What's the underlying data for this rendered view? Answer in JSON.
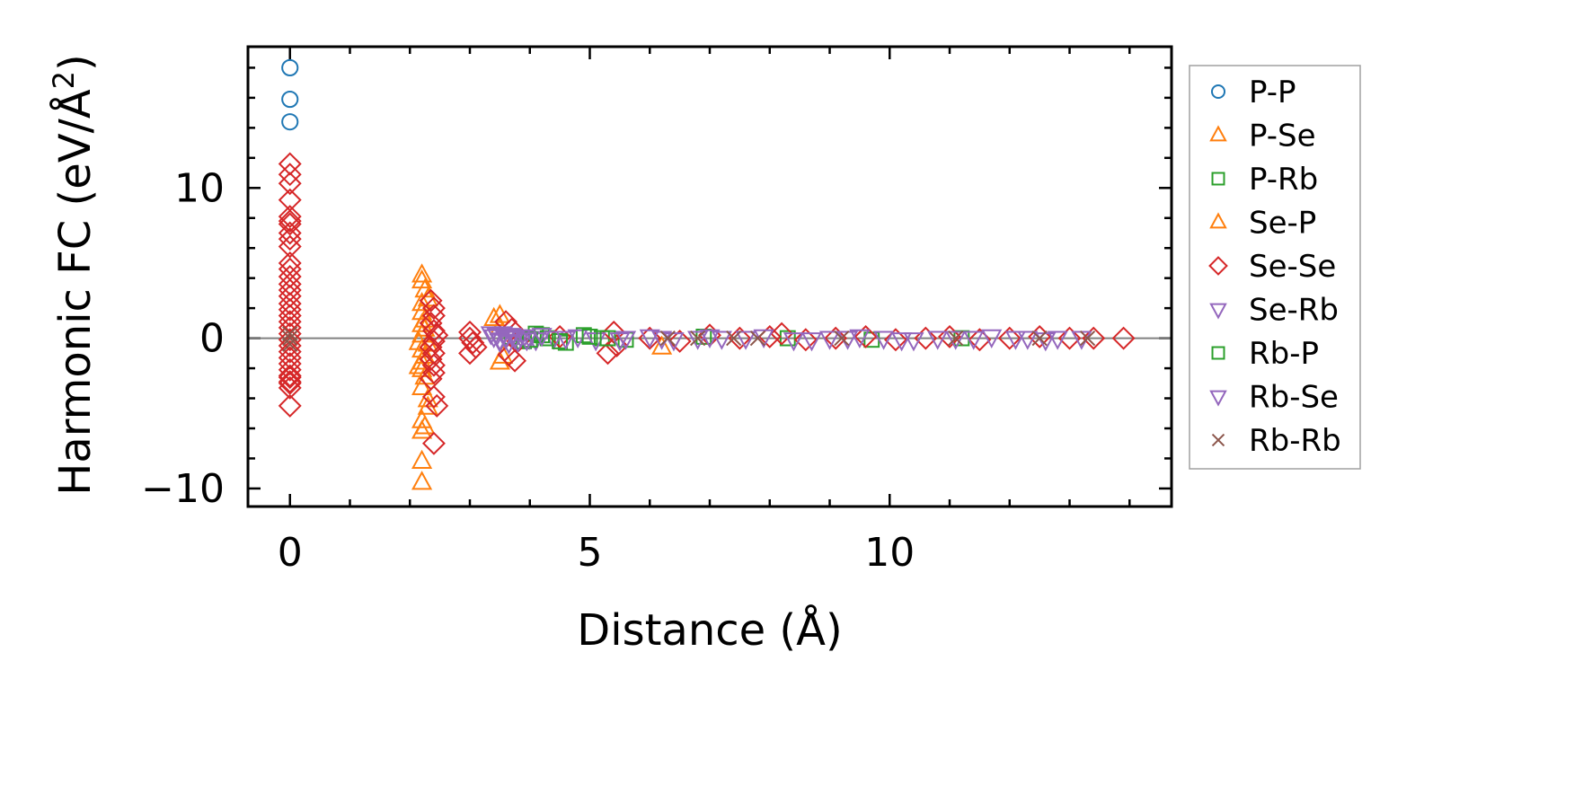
{
  "chart_data": {
    "type": "scatter",
    "xlabel": "Distance (Å)",
    "ylabel": "Harmonic FC (eV/Å²)",
    "ylabel_main": "Harmonic FC (eV/Å",
    "ylabel_sup": "2",
    "ylabel_end": ")",
    "xlim": [
      -0.7,
      14.7
    ],
    "ylim": [
      -11.2,
      19.4
    ],
    "x_ticks": [
      0,
      5,
      10
    ],
    "x_tick_labels": [
      "0",
      "5",
      "10"
    ],
    "y_ticks": [
      -10,
      0,
      10
    ],
    "y_tick_labels": [
      "−10",
      "0",
      "10"
    ],
    "x_minor_step": 1,
    "y_minor_step": 2,
    "zero_line": true,
    "grid": false,
    "legend_position": "outside-right",
    "series": [
      {
        "name": "P-P",
        "marker": "circle",
        "color": "#1f77b4",
        "x": [
          0,
          0,
          0
        ],
        "y": [
          18.0,
          15.9,
          14.4
        ]
      },
      {
        "name": "P-Se",
        "marker": "triangle-up",
        "color": "#ff7f0e",
        "x": [
          2.2,
          2.2,
          2.2,
          2.2,
          2.25,
          2.25,
          2.2,
          2.15,
          2.2,
          2.25,
          2.2,
          2.2,
          2.25,
          2.2,
          2.3,
          2.3,
          2.2,
          2.25,
          2.2,
          2.2,
          2.2,
          2.3,
          2.2,
          3.5,
          3.5,
          3.5,
          6.2
        ],
        "y": [
          4.2,
          3.8,
          2.3,
          1.7,
          1.2,
          0.6,
          0.2,
          -0.3,
          -0.8,
          -1.2,
          -1.6,
          -2.1,
          -2.6,
          -3.3,
          -4.1,
          -4.6,
          -5.5,
          -5.9,
          -6.2,
          -8.2,
          -9.6,
          -0.4,
          0.9,
          1.5,
          -1.6,
          0.7,
          -0.6
        ]
      },
      {
        "name": "P-Rb",
        "marker": "square",
        "color": "#2ca02c",
        "x": [
          3.7,
          3.9,
          4.1,
          4.3,
          4.6,
          4.9,
          5.2,
          5.6,
          6.9,
          8.3,
          9.7,
          11.2
        ],
        "y": [
          0.1,
          -0.2,
          0.3,
          0.0,
          -0.3,
          0.2,
          0.0,
          -0.1,
          0.1,
          0.0,
          -0.1,
          0.0
        ]
      },
      {
        "name": "Se-P",
        "marker": "triangle-up",
        "color": "#ff7f0e",
        "x": [
          2.25,
          2.15,
          2.3,
          3.55,
          3.4
        ],
        "y": [
          3.2,
          -1.9,
          2.6,
          -1.2,
          1.3
        ]
      },
      {
        "name": "Se-Se",
        "marker": "diamond",
        "color": "#d62728",
        "x": [
          0,
          0,
          0,
          0,
          0,
          0,
          0,
          0,
          0,
          0,
          0,
          0,
          0,
          0,
          0,
          0,
          0,
          0,
          0,
          0,
          0,
          0,
          0,
          0,
          0,
          0,
          0,
          0,
          0,
          0,
          0,
          0,
          0,
          0,
          2.35,
          2.4,
          2.4,
          2.35,
          2.4,
          2.45,
          2.4,
          2.35,
          2.4,
          2.35,
          2.4,
          2.4,
          2.35,
          2.4,
          2.45,
          2.4,
          3.0,
          3.05,
          3.0,
          3.1,
          3.0,
          3.6,
          3.7,
          3.8,
          3.65,
          3.75,
          4.5,
          5.4,
          5.45,
          5.3,
          6.0,
          6.5,
          7.0,
          7.5,
          8.0,
          8.2,
          8.6,
          9.1,
          9.6,
          10.1,
          10.6,
          11.0,
          11.5,
          12.0,
          12.5,
          13.0,
          13.4,
          13.9
        ],
        "y": [
          11.6,
          10.9,
          10.3,
          9.2,
          8.1,
          7.6,
          7.0,
          6.6,
          6.1,
          5.0,
          4.6,
          4.1,
          3.6,
          3.2,
          2.8,
          2.3,
          1.9,
          1.5,
          1.1,
          0.7,
          0.3,
          -0.1,
          -0.5,
          -0.9,
          -1.3,
          -1.7,
          -2.1,
          -2.5,
          -2.9,
          -3.3,
          -3.0,
          -2.6,
          -4.5,
          7.8,
          2.5,
          2.0,
          1.5,
          1.0,
          0.5,
          0.2,
          -0.2,
          -0.6,
          -1.0,
          -1.4,
          -1.8,
          -2.3,
          -2.7,
          -3.9,
          -4.5,
          -7.0,
          0.4,
          -0.3,
          0.0,
          -0.6,
          -1.0,
          1.1,
          0.6,
          -0.2,
          -1.1,
          -1.5,
          0.1,
          0.4,
          -0.5,
          -1.0,
          0.0,
          -0.2,
          0.2,
          0.0,
          0.1,
          0.3,
          -0.1,
          0.0,
          0.1,
          -0.1,
          0.0,
          0.1,
          -0.1,
          0.0,
          0.1,
          0.0,
          0.0,
          0.0
        ]
      },
      {
        "name": "Se-Rb",
        "marker": "triangle-down",
        "color": "#9467bd",
        "x": [
          3.35,
          3.4,
          3.5,
          3.55,
          3.6,
          3.7,
          3.8,
          3.9,
          4.0,
          4.1,
          4.4,
          4.8,
          5.1,
          5.6,
          6.0,
          6.4,
          6.8,
          7.2,
          7.9,
          8.7,
          9.3,
          9.9,
          10.4,
          11.1,
          11.7,
          12.3,
          12.8
        ],
        "y": [
          0.3,
          0.1,
          -0.1,
          0.3,
          0.0,
          0.2,
          -0.2,
          0.1,
          0.0,
          -0.1,
          0.0,
          0.1,
          -0.1,
          0.0,
          0.1,
          -0.1,
          0.0,
          0.0,
          0.1,
          -0.1,
          0.0,
          0.0,
          -0.1,
          0.0,
          0.1,
          0.0,
          0.0
        ]
      },
      {
        "name": "Rb-P",
        "marker": "square",
        "color": "#2ca02c",
        "x": [
          4.0,
          4.2,
          4.5,
          5.0,
          5.3
        ],
        "y": [
          -0.1,
          0.2,
          -0.2,
          0.1,
          0.0
        ]
      },
      {
        "name": "Rb-Se",
        "marker": "triangle-down",
        "color": "#9467bd",
        "x": [
          3.45,
          3.5,
          3.6,
          3.65,
          3.75,
          3.85,
          3.95,
          4.2,
          4.6,
          5.5,
          6.2,
          7.0,
          7.6,
          8.4,
          9.0,
          9.5,
          10.2,
          10.8,
          11.4,
          12.1,
          12.6,
          13.2
        ],
        "y": [
          0.2,
          -0.2,
          0.1,
          -0.3,
          0.0,
          0.1,
          -0.1,
          0.2,
          0.0,
          -0.1,
          0.0,
          0.1,
          0.0,
          -0.1,
          0.0,
          0.1,
          -0.1,
          0.0,
          0.0,
          0.0,
          -0.1,
          0.0
        ]
      },
      {
        "name": "Rb-Rb",
        "marker": "x",
        "color": "#8c564b",
        "x": [
          0,
          0,
          0,
          6.3,
          6.8,
          7.4,
          7.8,
          9.2,
          11.1,
          12.5,
          13.3
        ],
        "y": [
          0.3,
          -0.4,
          0.0,
          0.0,
          0.0,
          0.0,
          0.0,
          0.0,
          0.0,
          0.0,
          0.0
        ]
      }
    ]
  }
}
